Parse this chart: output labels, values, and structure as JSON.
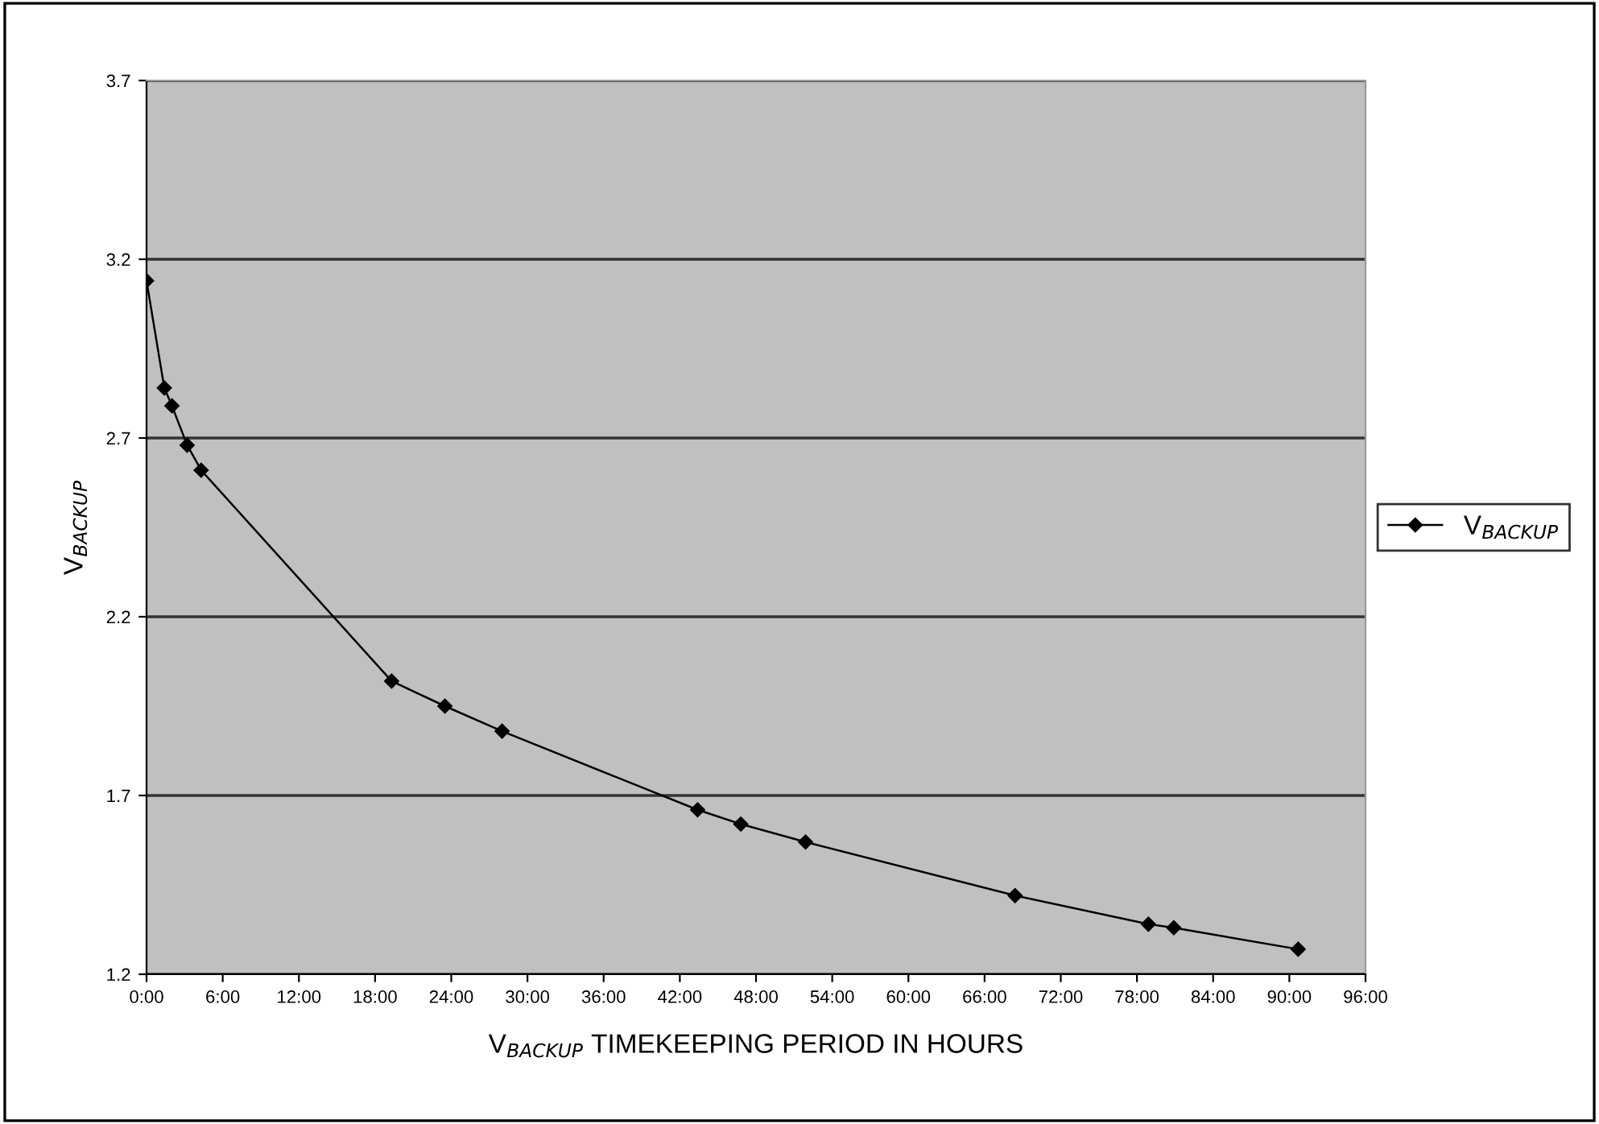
{
  "chart_data": {
    "type": "line",
    "xlabel": "V$_{BACKUP}$ TIMEKEEPING PERIOD IN HOURS",
    "ylabel": "V$_{BACKUP}$",
    "series": [
      {
        "name": "V$_{BACKUP}$",
        "color": "#000000",
        "x": [
          0,
          1.4,
          2.0,
          3.2,
          4.3,
          19.3,
          23.5,
          28.0,
          43.4,
          46.8,
          51.9,
          68.4,
          78.9,
          80.9,
          90.7
        ],
        "values": [
          3.14,
          2.84,
          2.79,
          2.68,
          2.61,
          2.02,
          1.95,
          1.88,
          1.66,
          1.62,
          1.57,
          1.42,
          1.34,
          1.33,
          1.27
        ]
      }
    ],
    "xlim": [
      0,
      96
    ],
    "xticks": [
      {
        "value": 0,
        "label": "0:00"
      },
      {
        "value": 6,
        "label": "6:00"
      },
      {
        "value": 12,
        "label": "12:00"
      },
      {
        "value": 18,
        "label": "18:00"
      },
      {
        "value": 24,
        "label": "24:00"
      },
      {
        "value": 30,
        "label": "30:00"
      },
      {
        "value": 36,
        "label": "36:00"
      },
      {
        "value": 42,
        "label": "42:00"
      },
      {
        "value": 48,
        "label": "48:00"
      },
      {
        "value": 54,
        "label": "54:00"
      },
      {
        "value": 60,
        "label": "60:00"
      },
      {
        "value": 66,
        "label": "66:00"
      },
      {
        "value": 72,
        "label": "72:00"
      },
      {
        "value": 78,
        "label": "78:00"
      },
      {
        "value": 84,
        "label": "84:00"
      },
      {
        "value": 90,
        "label": "90:00"
      },
      {
        "value": 96,
        "label": "96:00"
      }
    ],
    "ylim": [
      1.2,
      3.7
    ],
    "yticks": [
      1.2,
      1.7,
      2.2,
      2.7,
      3.2,
      3.7
    ],
    "grid": "y",
    "legend": "right",
    "marker": "diamond",
    "line_style": "solid"
  }
}
